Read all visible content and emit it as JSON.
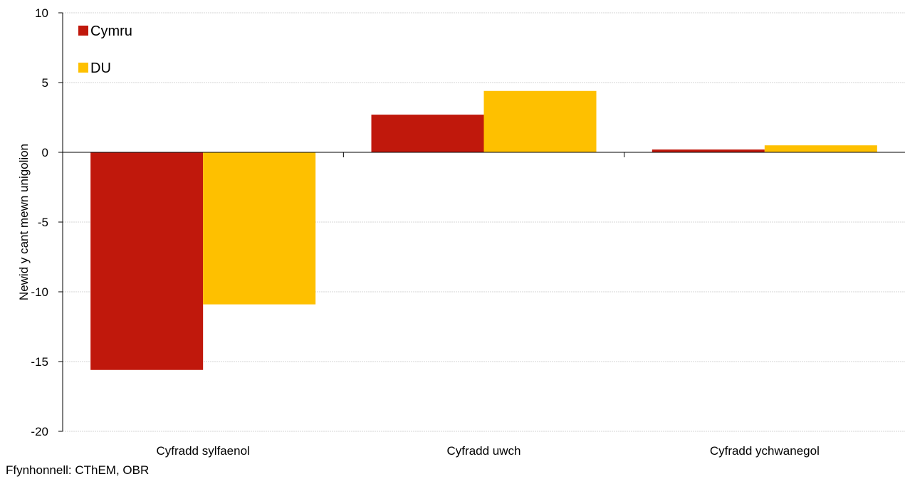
{
  "chart_data": {
    "type": "bar",
    "title": "",
    "xlabel": "",
    "ylabel": "Newid y cant mewn unigolion",
    "categories": [
      "Cyfradd sylfaenol",
      "Cyfradd uwch",
      "Cyfradd ychwanegol"
    ],
    "series": [
      {
        "name": "Cymru",
        "color": "#c0180c",
        "values": [
          -15.6,
          2.7,
          0.2
        ]
      },
      {
        "name": "DU",
        "color": "#fec000",
        "values": [
          -10.9,
          4.4,
          0.5
        ]
      }
    ],
    "ylim": [
      -20,
      10
    ],
    "yticks": [
      10,
      5,
      0,
      -5,
      -10,
      -15,
      -20
    ],
    "ytick_labels": [
      "10",
      "5",
      "0",
      "-5",
      "-10",
      "-15",
      "-20"
    ],
    "grid": true,
    "legend_position": "top-left"
  },
  "source": "Ffynhonnell: CThEM, OBR"
}
